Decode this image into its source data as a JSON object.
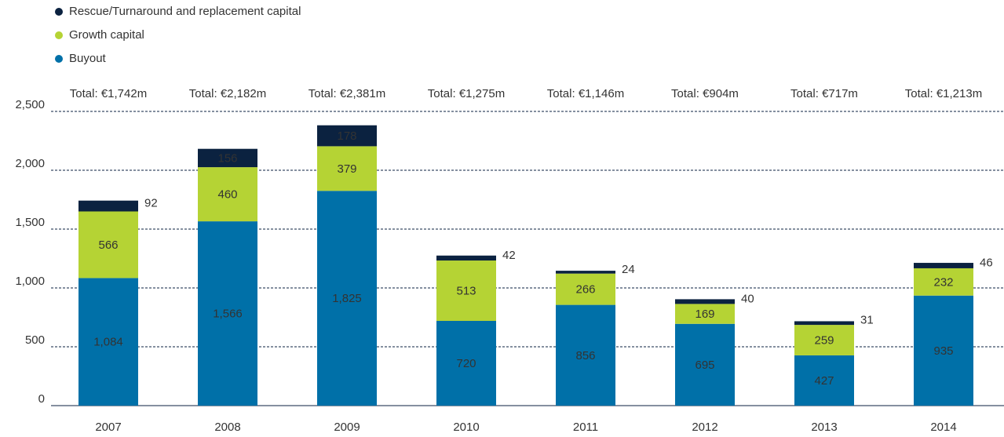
{
  "chart_data": {
    "type": "bar",
    "stacked": true,
    "categories": [
      "2007",
      "2008",
      "2009",
      "2010",
      "2011",
      "2012",
      "2013",
      "2014"
    ],
    "series": [
      {
        "name": "Buyout",
        "color": "#0070a8",
        "values": [
          1084,
          1566,
          1825,
          720,
          856,
          695,
          427,
          935
        ],
        "value_labels": [
          "1,084",
          "1,566",
          "1,825",
          "720",
          "856",
          "695",
          "427",
          "935"
        ]
      },
      {
        "name": "Growth capital",
        "color": "#b5d334",
        "values": [
          566,
          460,
          379,
          513,
          266,
          169,
          259,
          232
        ]
      },
      {
        "name": "Rescue/Turnaround and replacement capital",
        "color": "#0b2240",
        "values": [
          92,
          156,
          178,
          42,
          24,
          40,
          31,
          46
        ]
      }
    ],
    "annotations": [
      "Total: €1,742m",
      "Total: €2,182m",
      "Total: €2,381m",
      "Total: €1,275m",
      "Total: €1,146m",
      "Total: €904m",
      "Total: €717m",
      "Total: €1,213m"
    ],
    "ylim": [
      0,
      2500
    ],
    "yticks": [
      0,
      500,
      {
        "value": 1000,
        "label": "1,000"
      },
      {
        "value": 1500,
        "label": "1,500"
      },
      {
        "value": 2000,
        "label": "2,000"
      },
      {
        "value": 2500,
        "label": "2,500"
      }
    ],
    "grid": true,
    "legend": "top-left"
  }
}
